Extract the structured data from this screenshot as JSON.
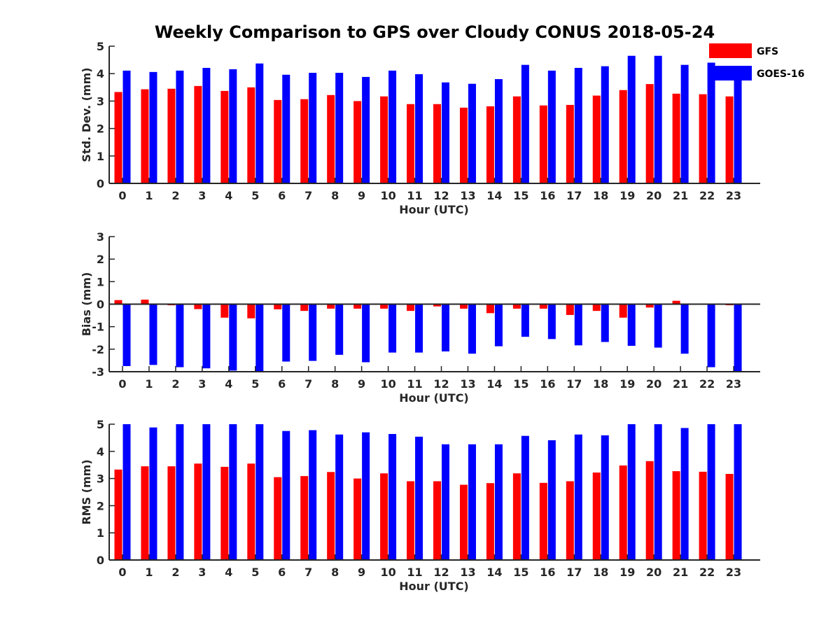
{
  "title": "Weekly Comparison to GPS over Cloudy CONUS 2018-05-24",
  "legend": {
    "position": "top-right",
    "entries": [
      "GFS",
      "GOES-16"
    ]
  },
  "colors": {
    "GFS": "#ff0000",
    "GOES-16": "#0000ff",
    "axis": "#262626"
  },
  "chart_data": [
    {
      "type": "bar",
      "xlabel": "Hour (UTC)",
      "ylabel": "Std. Dev. (mm)",
      "ylim": [
        0,
        5
      ],
      "yticks": [
        0,
        1,
        2,
        3,
        4,
        5
      ],
      "categories": [
        "0",
        "1",
        "2",
        "3",
        "4",
        "5",
        "6",
        "7",
        "8",
        "9",
        "10",
        "11",
        "12",
        "13",
        "14",
        "15",
        "16",
        "17",
        "18",
        "19",
        "20",
        "21",
        "22",
        "23"
      ],
      "series": [
        {
          "name": "GFS",
          "values": [
            3.33,
            3.43,
            3.45,
            3.55,
            3.37,
            3.5,
            3.04,
            3.07,
            3.22,
            3.0,
            3.17,
            2.89,
            2.89,
            2.76,
            2.81,
            3.17,
            2.84,
            2.86,
            3.2,
            3.4,
            3.62,
            3.27,
            3.25,
            3.17
          ]
        },
        {
          "name": "GOES-16",
          "values": [
            4.11,
            4.06,
            4.11,
            4.21,
            4.16,
            4.37,
            3.96,
            4.03,
            4.03,
            3.88,
            4.11,
            3.98,
            3.68,
            3.63,
            3.8,
            4.32,
            4.11,
            4.21,
            4.27,
            4.65,
            4.65,
            4.32,
            4.4,
            3.8
          ]
        }
      ],
      "grid": false
    },
    {
      "type": "bar",
      "xlabel": "Hour (UTC)",
      "ylabel": "Bias (mm)",
      "ylim": [
        -3,
        3
      ],
      "yticks": [
        -3,
        -2,
        -1,
        0,
        1,
        2,
        3
      ],
      "categories": [
        "0",
        "1",
        "2",
        "3",
        "4",
        "5",
        "6",
        "7",
        "8",
        "9",
        "10",
        "11",
        "12",
        "13",
        "14",
        "15",
        "16",
        "17",
        "18",
        "19",
        "20",
        "21",
        "22",
        "23"
      ],
      "series": [
        {
          "name": "GFS",
          "values": [
            0.18,
            0.2,
            -0.05,
            -0.22,
            -0.6,
            -0.63,
            -0.23,
            -0.3,
            -0.2,
            -0.2,
            -0.2,
            -0.3,
            -0.1,
            -0.2,
            -0.4,
            -0.2,
            -0.2,
            -0.48,
            -0.3,
            -0.6,
            -0.15,
            0.15,
            -0.02,
            -0.05
          ]
        },
        {
          "name": "GOES-16",
          "values": [
            -2.75,
            -2.7,
            -2.8,
            -2.85,
            -2.95,
            -3.0,
            -2.55,
            -2.52,
            -2.25,
            -2.58,
            -2.15,
            -2.15,
            -2.1,
            -2.2,
            -1.87,
            -1.45,
            -1.55,
            -1.83,
            -1.68,
            -1.85,
            -1.93,
            -2.2,
            -2.8,
            -3.0
          ]
        }
      ],
      "grid": false
    },
    {
      "type": "bar",
      "xlabel": "Hour (UTC)",
      "ylabel": "RMS (mm)",
      "ylim": [
        0,
        5
      ],
      "yticks": [
        0,
        1,
        2,
        3,
        4,
        5
      ],
      "categories": [
        "0",
        "1",
        "2",
        "3",
        "4",
        "5",
        "6",
        "7",
        "8",
        "9",
        "10",
        "11",
        "12",
        "13",
        "14",
        "15",
        "16",
        "17",
        "18",
        "19",
        "20",
        "21",
        "22",
        "23"
      ],
      "series": [
        {
          "name": "GFS",
          "values": [
            3.33,
            3.45,
            3.45,
            3.55,
            3.43,
            3.55,
            3.05,
            3.09,
            3.24,
            3.0,
            3.19,
            2.9,
            2.9,
            2.77,
            2.83,
            3.19,
            2.84,
            2.9,
            3.22,
            3.48,
            3.64,
            3.27,
            3.25,
            3.17
          ]
        },
        {
          "name": "GOES-16",
          "values": [
            5.0,
            4.88,
            5.0,
            5.0,
            5.0,
            5.0,
            4.75,
            4.78,
            4.62,
            4.7,
            4.64,
            4.54,
            4.26,
            4.26,
            4.26,
            4.57,
            4.41,
            4.62,
            4.59,
            5.0,
            5.0,
            4.86,
            5.0,
            5.0
          ]
        }
      ],
      "grid": false
    }
  ]
}
